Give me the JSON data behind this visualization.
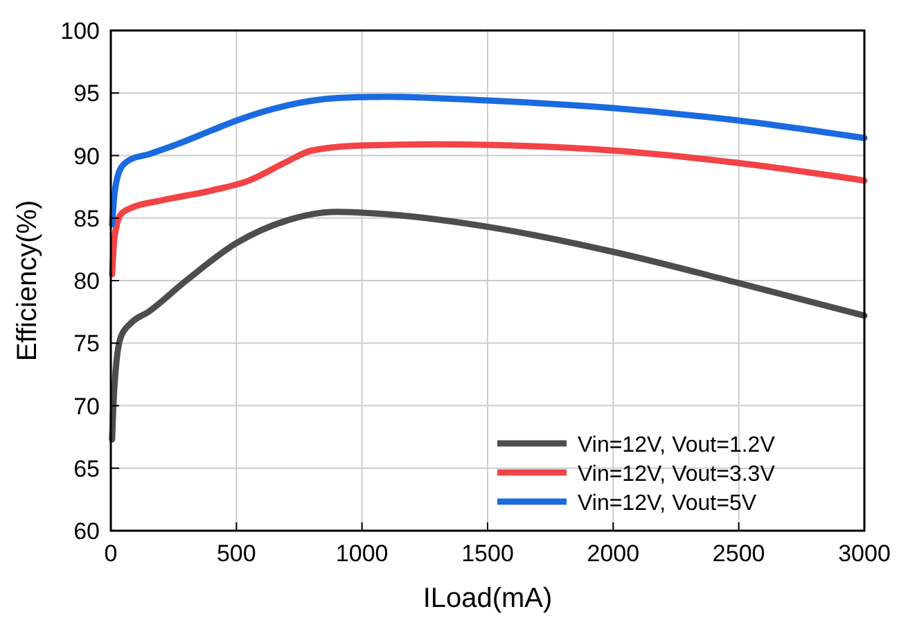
{
  "chart_data": {
    "type": "line",
    "xlabel": "ILoad(mA)",
    "ylabel": "Efficiency(%)",
    "xlim": [
      0,
      3000
    ],
    "xticks": [
      0,
      500,
      1000,
      1500,
      2000,
      2500,
      3000
    ],
    "ylim": [
      60,
      100
    ],
    "yticks": [
      60,
      65,
      70,
      75,
      80,
      85,
      90,
      95,
      100
    ],
    "grid": true,
    "legend": "bottom right",
    "line_style": "solid",
    "marker": "none",
    "series": [
      {
        "name": "Vin=12V, Vout=1.2V",
        "color": "#4d4d4d",
        "x": [
          5,
          10,
          20,
          40,
          80,
          150,
          300,
          500,
          700,
          900,
          1100,
          1500,
          2000,
          2500,
          3000
        ],
        "values": [
          67.3,
          70,
          73,
          75.5,
          76.6,
          77.5,
          80,
          83,
          84.8,
          85.5,
          85.3,
          84.3,
          82.3,
          79.8,
          77.2
        ]
      },
      {
        "name": "Vin=12V, Vout=3.3V",
        "color": "#f24346",
        "x": [
          5,
          15,
          40,
          80,
          200,
          400,
          550,
          700,
          800,
          1000,
          1300,
          1600,
          2000,
          2500,
          3000
        ],
        "values": [
          80.5,
          83.5,
          85.3,
          85.8,
          86.4,
          87.2,
          88,
          89.5,
          90.4,
          90.8,
          90.9,
          90.8,
          90.4,
          89.4,
          88.0
        ]
      },
      {
        "name": "Vin=12V, Vout=5V",
        "color": "#1a6ae0",
        "x": [
          5,
          15,
          40,
          80,
          150,
          250,
          400,
          500,
          700,
          900,
          1100,
          1500,
          2000,
          2500,
          3000
        ],
        "values": [
          84.5,
          87,
          89,
          89.7,
          90.1,
          90.8,
          92,
          92.8,
          94,
          94.6,
          94.7,
          94.4,
          93.8,
          92.8,
          91.4
        ]
      }
    ]
  }
}
